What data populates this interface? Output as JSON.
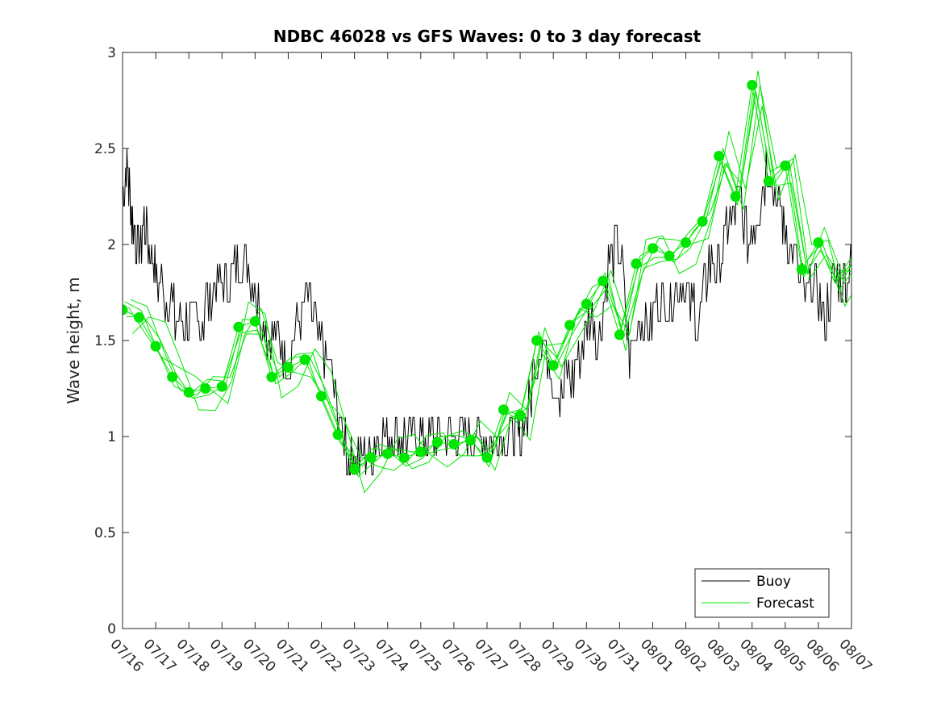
{
  "chart_data": {
    "type": "line",
    "title": "NDBC 46028 vs GFS Waves: 0 to 3 day forecast",
    "xlabel": "",
    "ylabel": "Wave height, m",
    "ylim": [
      0,
      3
    ],
    "yticks": [
      "0",
      "0.5",
      "1",
      "1.5",
      "2",
      "2.5",
      "3"
    ],
    "xlim": [
      "07/16",
      "08/07"
    ],
    "xticks": [
      "07/16",
      "07/17",
      "07/18",
      "07/19",
      "07/20",
      "07/21",
      "07/22",
      "07/23",
      "07/24",
      "07/25",
      "07/26",
      "07/27",
      "07/28",
      "07/29",
      "07/30",
      "07/31",
      "08/01",
      "08/02",
      "08/03",
      "08/04",
      "08/05",
      "08/06",
      "08/07"
    ],
    "legend": {
      "placement": "bottom-right",
      "entries": [
        "Buoy",
        "Forecast"
      ]
    },
    "colors": {
      "buoy": "#000000",
      "forecast": "#00e600"
    },
    "series": [
      {
        "name": "Buoy",
        "x_days": [
          0,
          0.15,
          0.3,
          0.5,
          0.7,
          0.9,
          1.1,
          1.4,
          1.7,
          2,
          2.3,
          2.6,
          2.9,
          3.2,
          3.5,
          3.8,
          4.1,
          4.4,
          4.7,
          5,
          5.3,
          5.6,
          5.9,
          6.2,
          6.5,
          6.8,
          7,
          7.3,
          7.6,
          7.9,
          8.2,
          8.5,
          8.8,
          9.1,
          9.4,
          9.7,
          10,
          10.3,
          10.6,
          10.9,
          11.2,
          11.5,
          11.8,
          12,
          12.3,
          12.6,
          12.9,
          13.2,
          13.5,
          13.8,
          14.1,
          14.4,
          14.7,
          15,
          15.3,
          15.6,
          15.9,
          16.2,
          16.5,
          16.8,
          17.1,
          17.4,
          17.7,
          18,
          18.3,
          18.6,
          18.9,
          19.2,
          19.5,
          19.8,
          20,
          20.3,
          20.6,
          20.9,
          21.2,
          21.5,
          21.8,
          22
        ],
        "values": [
          2.3,
          2.4,
          2.1,
          2,
          2.1,
          1.9,
          1.8,
          1.7,
          1.6,
          1.6,
          1.6,
          1.7,
          1.8,
          1.8,
          1.9,
          1.9,
          1.7,
          1.5,
          1.5,
          1.4,
          1.6,
          1.7,
          1.5,
          1.4,
          1.1,
          0.9,
          0.9,
          0.9,
          0.95,
          1,
          1,
          1,
          1,
          0.95,
          0.95,
          0.95,
          0.95,
          0.95,
          0.95,
          0.95,
          0.95,
          0.95,
          0.95,
          1,
          1.2,
          1.5,
          1.4,
          1.2,
          1.3,
          1.4,
          1.6,
          1.5,
          1.9,
          2,
          1.4,
          1.6,
          1.6,
          1.7,
          1.7,
          1.8,
          1.7,
          1.6,
          1.9,
          1.9,
          2.1,
          2.2,
          2,
          2.2,
          2.4,
          2.2,
          2.1,
          1.9,
          1.7,
          1.8,
          1.6,
          1.8,
          1.8,
          1.9
        ]
      },
      {
        "name": "Forecast",
        "x_days": [
          0,
          0.5,
          1,
          1.5,
          2,
          2.5,
          3,
          3.5,
          4,
          4.5,
          5,
          5.5,
          6,
          6.5,
          7,
          7.5,
          8,
          8.5,
          9,
          9.5,
          10,
          10.5,
          11,
          11.5,
          12,
          12.5,
          13,
          13.5,
          14,
          14.5,
          15,
          15.5,
          16,
          16.5,
          17,
          17.5,
          18,
          18.5,
          19,
          19.5,
          20,
          20.5,
          21,
          21.5,
          22
        ],
        "values": [
          1.66,
          1.62,
          1.47,
          1.31,
          1.23,
          1.25,
          1.26,
          1.57,
          1.6,
          1.31,
          1.36,
          1.4,
          1.21,
          1.01,
          0.83,
          0.89,
          0.91,
          0.89,
          0.92,
          0.97,
          0.96,
          0.98,
          0.89,
          1.14,
          1.11,
          1.5,
          1.37,
          1.58,
          1.69,
          1.81,
          1.53,
          1.9,
          1.98,
          1.94,
          2.01,
          2.12,
          2.46,
          2.25,
          2.83,
          2.33,
          2.41,
          1.87,
          2.01,
          1.8,
          1.9
        ]
      }
    ],
    "forecast_markers": {
      "x_days": [
        0,
        0.5,
        1,
        1.5,
        2,
        2.5,
        3,
        3.5,
        4,
        4.5,
        5,
        5.5,
        6,
        6.5,
        7,
        7.5,
        8,
        8.5,
        9,
        9.5,
        10,
        10.5,
        11,
        11.5,
        12,
        12.5,
        13,
        13.5,
        14,
        14.5,
        15,
        15.5,
        16,
        16.5,
        17,
        17.5,
        18,
        18.5,
        19,
        19.5,
        20,
        20.5,
        21
      ],
      "values": [
        1.66,
        1.62,
        1.47,
        1.31,
        1.23,
        1.25,
        1.26,
        1.57,
        1.6,
        1.31,
        1.36,
        1.4,
        1.21,
        1.01,
        0.83,
        0.89,
        0.91,
        0.89,
        0.92,
        0.97,
        0.96,
        0.98,
        0.89,
        1.14,
        1.11,
        1.5,
        1.37,
        1.58,
        1.69,
        1.81,
        1.53,
        1.9,
        1.98,
        1.94,
        2.01,
        2.12,
        2.46,
        2.25,
        2.83,
        2.33,
        2.41,
        1.87,
        2.01
      ]
    }
  }
}
